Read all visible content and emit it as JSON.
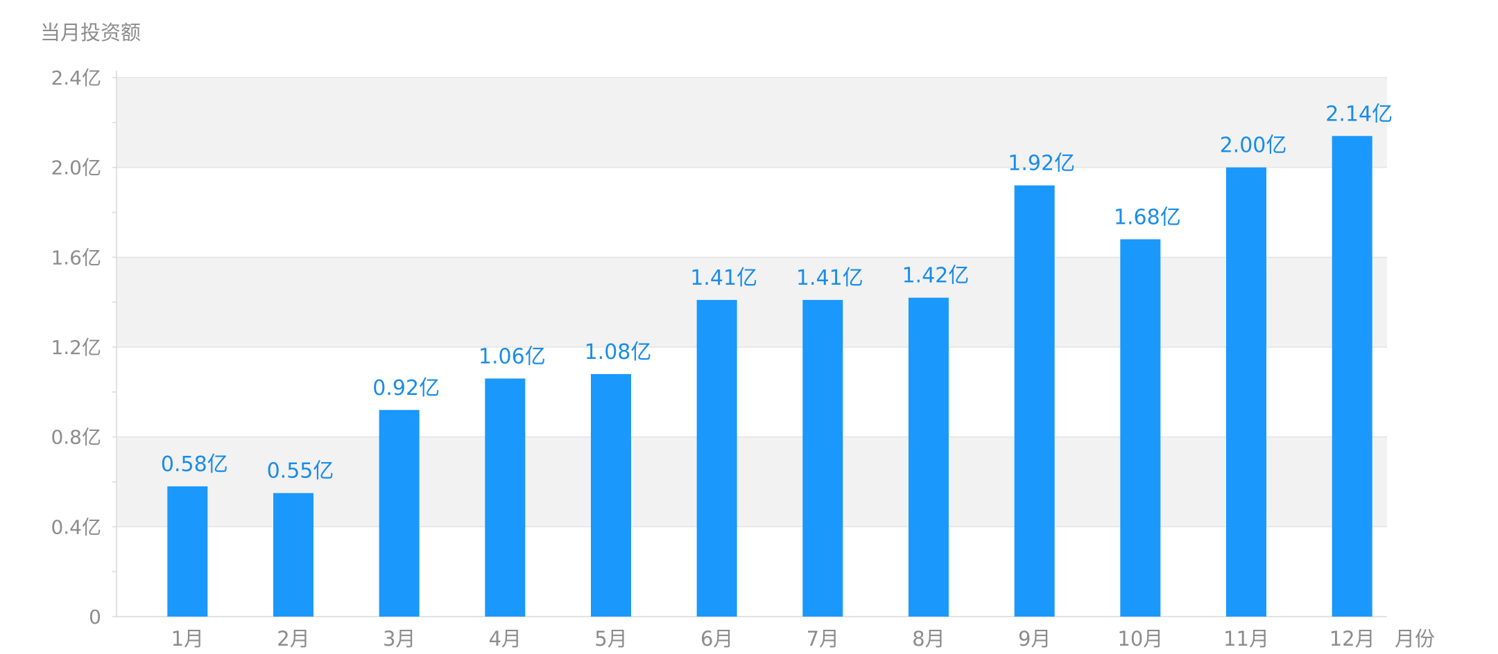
{
  "chart_data": {
    "type": "bar",
    "ylabel": "当月投资额",
    "xlabel": "月份",
    "categories": [
      "1月",
      "2月",
      "3月",
      "4月",
      "5月",
      "6月",
      "7月",
      "8月",
      "9月",
      "10月",
      "11月",
      "12月"
    ],
    "values": [
      0.58,
      0.55,
      0.92,
      1.06,
      1.08,
      1.41,
      1.41,
      1.42,
      1.92,
      1.68,
      2.0,
      2.14
    ],
    "data_labels": [
      "0.58亿",
      "0.55亿",
      "0.92亿",
      "1.06亿",
      "1.08亿",
      "1.41亿",
      "1.41亿",
      "1.42亿",
      "1.92亿",
      "1.68亿",
      "2.00亿",
      "2.14亿"
    ],
    "ylim": [
      0,
      2.4
    ],
    "yticks": [
      0,
      0.4,
      0.8,
      1.2,
      1.6,
      2.0,
      2.4
    ],
    "ytick_labels": [
      "0",
      "0.4亿",
      "0.8亿",
      "1.2亿",
      "1.6亿",
      "2.0亿",
      "2.4亿"
    ],
    "grid": true,
    "colors": {
      "bar": "#1a98fc",
      "data_label": "#1a8ce8",
      "axis_text": "#8c8c8c",
      "band": "#f2f2f2",
      "grid": "#e4e4e4"
    }
  }
}
